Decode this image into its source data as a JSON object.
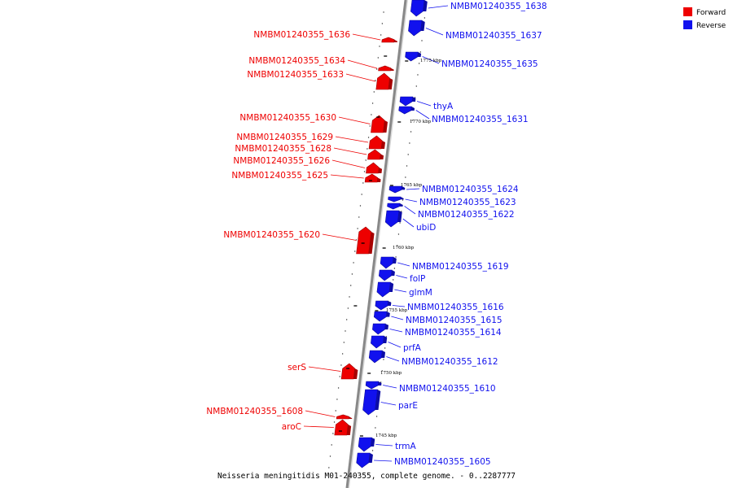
{
  "caption": "Neisseria meningitidis M01-240355, complete genome. - 0..2287777",
  "legend": [
    {
      "label": "Forward",
      "color": "#ee0000"
    },
    {
      "label": "Reverse",
      "color": "#1111ee"
    }
  ],
  "colors": {
    "forward": "#ee0000",
    "reverse": "#1111ee",
    "axis": "#888888"
  },
  "ticks": [
    {
      "label": "1775 kbp",
      "kbp": 1775
    },
    {
      "label": "1770 kbp",
      "kbp": 1770
    },
    {
      "label": "1765 kbp",
      "kbp": 1765
    },
    {
      "label": "1760 kbp",
      "kbp": 1760
    },
    {
      "label": "1755 kbp",
      "kbp": 1755
    },
    {
      "label": "1750 kbp",
      "kbp": 1750
    },
    {
      "label": "1745 kbp",
      "kbp": 1745
    }
  ],
  "genes": [
    {
      "name": "NMBM01240355_1638",
      "strand": "reverse"
    },
    {
      "name": "NMBM01240355_1637",
      "strand": "reverse"
    },
    {
      "name": "NMBM01240355_1636",
      "strand": "forward"
    },
    {
      "name": "NMBM01240355_1635",
      "strand": "reverse"
    },
    {
      "name": "NMBM01240355_1634",
      "strand": "forward"
    },
    {
      "name": "NMBM01240355_1633",
      "strand": "forward"
    },
    {
      "name": "thyA",
      "strand": "reverse"
    },
    {
      "name": "NMBM01240355_1631",
      "strand": "reverse"
    },
    {
      "name": "NMBM01240355_1630",
      "strand": "forward"
    },
    {
      "name": "NMBM01240355_1629",
      "strand": "forward"
    },
    {
      "name": "NMBM01240355_1628",
      "strand": "forward"
    },
    {
      "name": "NMBM01240355_1626",
      "strand": "forward"
    },
    {
      "name": "NMBM01240355_1625",
      "strand": "forward"
    },
    {
      "name": "NMBM01240355_1624",
      "strand": "reverse"
    },
    {
      "name": "NMBM01240355_1623",
      "strand": "reverse"
    },
    {
      "name": "NMBM01240355_1622",
      "strand": "reverse"
    },
    {
      "name": "ubiD",
      "strand": "reverse"
    },
    {
      "name": "NMBM01240355_1620",
      "strand": "forward"
    },
    {
      "name": "NMBM01240355_1619",
      "strand": "reverse"
    },
    {
      "name": "folP",
      "strand": "reverse"
    },
    {
      "name": "glmM",
      "strand": "reverse"
    },
    {
      "name": "NMBM01240355_1616",
      "strand": "reverse"
    },
    {
      "name": "NMBM01240355_1615",
      "strand": "reverse"
    },
    {
      "name": "NMBM01240355_1614",
      "strand": "reverse"
    },
    {
      "name": "prfA",
      "strand": "reverse"
    },
    {
      "name": "NMBM01240355_1612",
      "strand": "reverse"
    },
    {
      "name": "serS",
      "strand": "forward"
    },
    {
      "name": "NMBM01240355_1610",
      "strand": "reverse"
    },
    {
      "name": "parE",
      "strand": "reverse"
    },
    {
      "name": "NMBM01240355_1608",
      "strand": "forward"
    },
    {
      "name": "aroC",
      "strand": "forward"
    },
    {
      "name": "trmA",
      "strand": "reverse"
    },
    {
      "name": "NMBM01240355_1605",
      "strand": "reverse"
    }
  ]
}
